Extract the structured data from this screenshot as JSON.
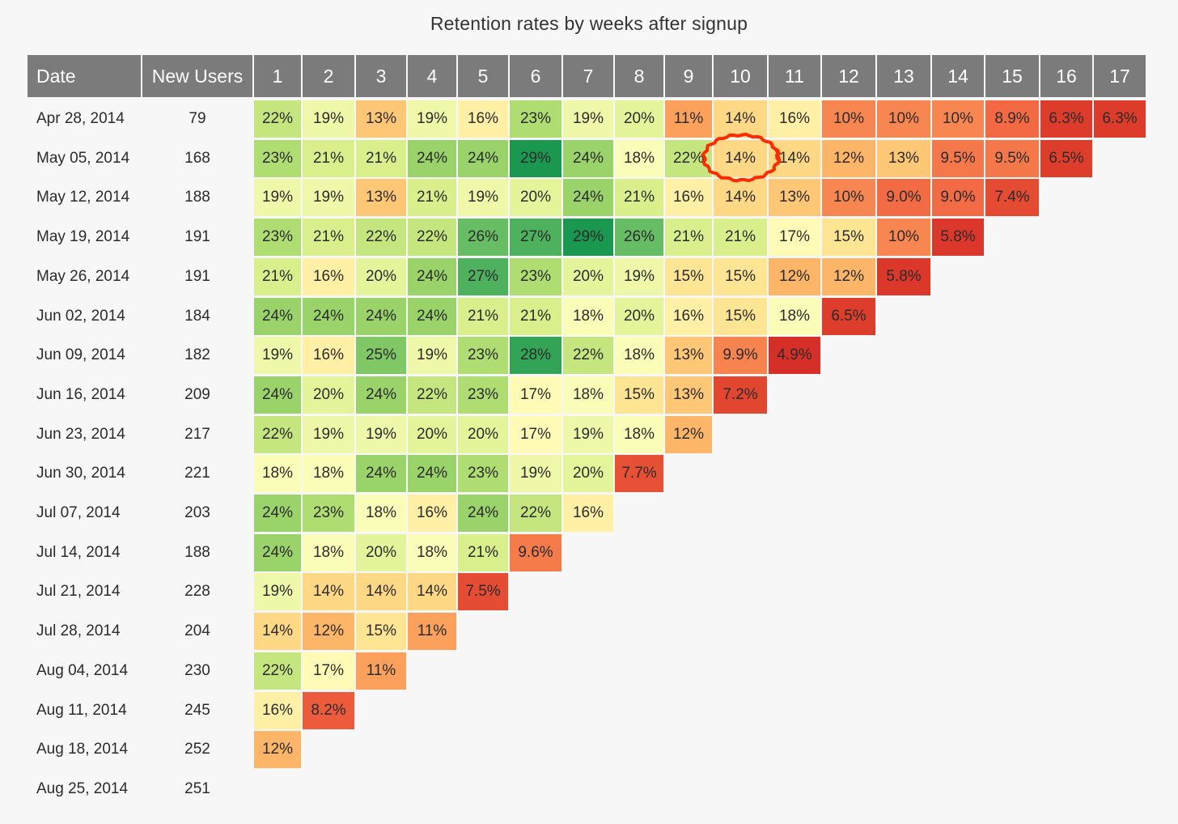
{
  "chart_data": {
    "type": "heatmap",
    "title": "Retention rates by weeks after signup",
    "row_header": "Date",
    "users_header": "New Users",
    "columns": [
      "1",
      "2",
      "3",
      "4",
      "5",
      "6",
      "7",
      "8",
      "9",
      "10",
      "11",
      "12",
      "13",
      "14",
      "15",
      "16",
      "17"
    ],
    "rows": [
      {
        "date": "Apr 28, 2014",
        "new_users": 79,
        "values": [
          "22%",
          "19%",
          "13%",
          "19%",
          "16%",
          "23%",
          "19%",
          "20%",
          "11%",
          "14%",
          "16%",
          "10%",
          "10%",
          "10%",
          "8.9%",
          "6.3%",
          "6.3%"
        ]
      },
      {
        "date": "May 05, 2014",
        "new_users": 168,
        "values": [
          "23%",
          "21%",
          "21%",
          "24%",
          "24%",
          "29%",
          "24%",
          "18%",
          "22%",
          "14%",
          "14%",
          "12%",
          "13%",
          "9.5%",
          "9.5%",
          "6.5%"
        ]
      },
      {
        "date": "May 12, 2014",
        "new_users": 188,
        "values": [
          "19%",
          "19%",
          "13%",
          "21%",
          "19%",
          "20%",
          "24%",
          "21%",
          "16%",
          "14%",
          "13%",
          "10%",
          "9.0%",
          "9.0%",
          "7.4%"
        ]
      },
      {
        "date": "May 19, 2014",
        "new_users": 191,
        "values": [
          "23%",
          "21%",
          "22%",
          "22%",
          "26%",
          "27%",
          "29%",
          "26%",
          "21%",
          "21%",
          "17%",
          "15%",
          "10%",
          "5.8%"
        ]
      },
      {
        "date": "May 26, 2014",
        "new_users": 191,
        "values": [
          "21%",
          "16%",
          "20%",
          "24%",
          "27%",
          "23%",
          "20%",
          "19%",
          "15%",
          "15%",
          "12%",
          "12%",
          "5.8%"
        ]
      },
      {
        "date": "Jun 02, 2014",
        "new_users": 184,
        "values": [
          "24%",
          "24%",
          "24%",
          "24%",
          "21%",
          "21%",
          "18%",
          "20%",
          "16%",
          "15%",
          "18%",
          "6.5%"
        ]
      },
      {
        "date": "Jun 09, 2014",
        "new_users": 182,
        "values": [
          "19%",
          "16%",
          "25%",
          "19%",
          "23%",
          "28%",
          "22%",
          "18%",
          "13%",
          "9.9%",
          "4.9%"
        ]
      },
      {
        "date": "Jun 16, 2014",
        "new_users": 209,
        "values": [
          "24%",
          "20%",
          "24%",
          "22%",
          "23%",
          "17%",
          "18%",
          "15%",
          "13%",
          "7.2%"
        ]
      },
      {
        "date": "Jun 23, 2014",
        "new_users": 217,
        "values": [
          "22%",
          "19%",
          "19%",
          "20%",
          "20%",
          "17%",
          "19%",
          "18%",
          "12%"
        ]
      },
      {
        "date": "Jun 30, 2014",
        "new_users": 221,
        "values": [
          "18%",
          "18%",
          "24%",
          "24%",
          "23%",
          "19%",
          "20%",
          "7.7%"
        ]
      },
      {
        "date": "Jul 07, 2014",
        "new_users": 203,
        "values": [
          "24%",
          "23%",
          "18%",
          "16%",
          "24%",
          "22%",
          "16%"
        ]
      },
      {
        "date": "Jul 14, 2014",
        "new_users": 188,
        "values": [
          "24%",
          "18%",
          "20%",
          "18%",
          "21%",
          "9.6%"
        ]
      },
      {
        "date": "Jul 21, 2014",
        "new_users": 228,
        "values": [
          "19%",
          "14%",
          "14%",
          "14%",
          "7.5%"
        ]
      },
      {
        "date": "Jul 28, 2014",
        "new_users": 204,
        "values": [
          "14%",
          "12%",
          "15%",
          "11%"
        ]
      },
      {
        "date": "Aug 04, 2014",
        "new_users": 230,
        "values": [
          "22%",
          "17%",
          "11%"
        ]
      },
      {
        "date": "Aug 11, 2014",
        "new_users": 245,
        "values": [
          "16%",
          "8.2%"
        ]
      },
      {
        "date": "Aug 18, 2014",
        "new_users": 252,
        "values": [
          "12%"
        ]
      },
      {
        "date": "Aug 25, 2014",
        "new_users": 251,
        "values": []
      }
    ],
    "highlight": {
      "row": 1,
      "col": 9
    }
  },
  "colors": {
    "header_bg": "#7b7b7b",
    "header_text": "#ffffff",
    "highlight_stroke": "#ff2a00"
  }
}
